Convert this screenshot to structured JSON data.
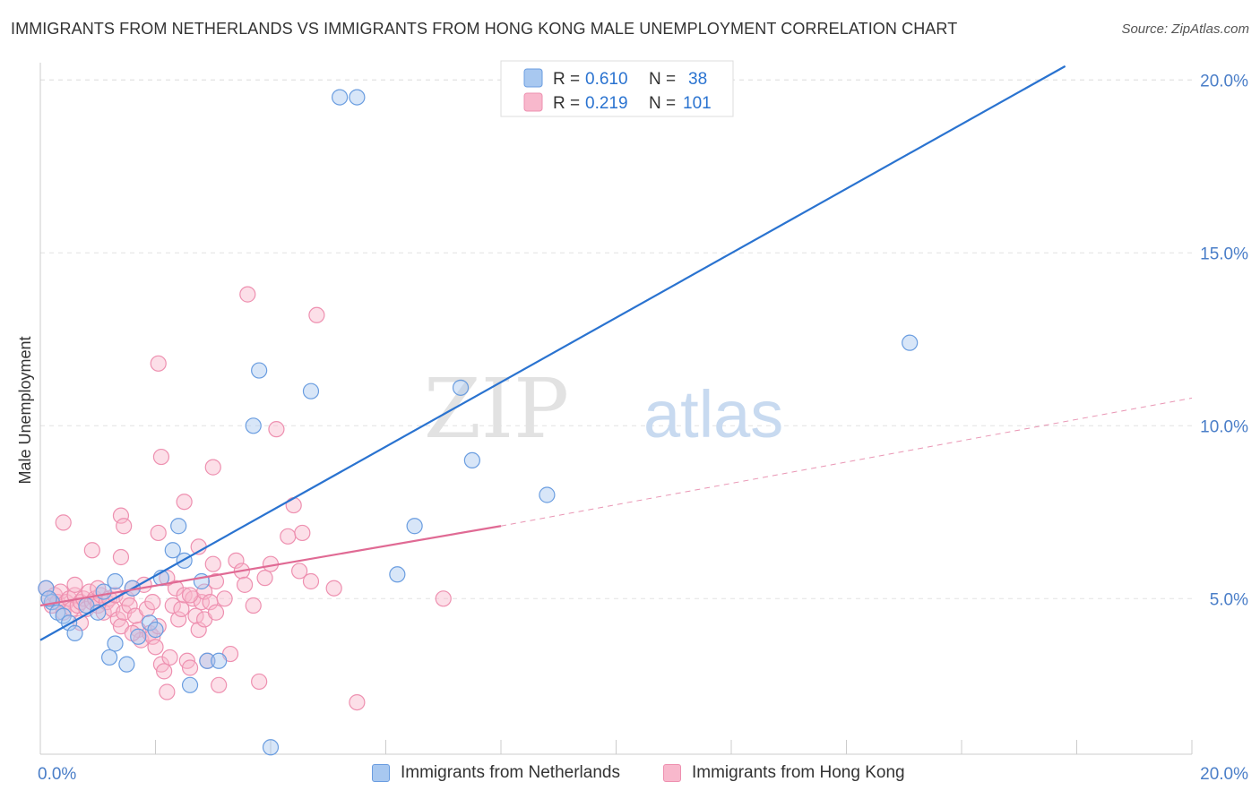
{
  "header": {
    "title": "IMMIGRANTS FROM NETHERLANDS VS IMMIGRANTS FROM HONG KONG MALE UNEMPLOYMENT CORRELATION CHART",
    "source": "Source: ZipAtlas.com"
  },
  "watermark": {
    "part1": "ZIP",
    "part2": "atlas"
  },
  "legend_top": {
    "rows": [
      {
        "r_label": "R = ",
        "r_value": "0.610",
        "n_label": "N = ",
        "n_value": "38"
      },
      {
        "r_label": "R = ",
        "r_value": "0.219",
        "n_label": "N = ",
        "n_value": "101"
      }
    ]
  },
  "legend_bottom": {
    "items": [
      "Immigrants from Netherlands",
      "Immigrants from Hong Kong"
    ]
  },
  "colors": {
    "netherlands_fill": "#a8c8f0",
    "netherlands_stroke": "#6a9de0",
    "netherlands_line": "#2a73d0",
    "hongkong_fill": "#f8b8cc",
    "hongkong_stroke": "#ee90b0",
    "hongkong_line": "#e06a94",
    "axis_label": "#4a7ec8",
    "value_text": "#2a73d0"
  },
  "chart_data": {
    "type": "scatter",
    "title": "IMMIGRANTS FROM NETHERLANDS VS IMMIGRANTS FROM HONG KONG MALE UNEMPLOYMENT CORRELATION CHART",
    "xlabel": "",
    "ylabel": "Male Unemployment",
    "xlim": [
      0,
      20
    ],
    "ylim": [
      0.5,
      20.5
    ],
    "x_tick_labels": [
      "0.0%",
      "20.0%"
    ],
    "y_ticks": [
      5,
      10,
      15,
      20
    ],
    "y_tick_labels": [
      "5.0%",
      "10.0%",
      "15.0%",
      "20.0%"
    ],
    "grid": true,
    "series": [
      {
        "name": "Immigrants from Netherlands",
        "r": 0.61,
        "n": 38,
        "trend": {
          "x": [
            0,
            17.8
          ],
          "y": [
            3.8,
            20.4
          ]
        },
        "points": [
          [
            0.1,
            5.3
          ],
          [
            0.2,
            4.9
          ],
          [
            0.3,
            4.6
          ],
          [
            0.4,
            4.5
          ],
          [
            0.5,
            4.3
          ],
          [
            0.6,
            4.0
          ],
          [
            0.8,
            4.8
          ],
          [
            1.0,
            4.6
          ],
          [
            1.1,
            5.2
          ],
          [
            1.2,
            3.3
          ],
          [
            1.3,
            5.5
          ],
          [
            1.3,
            3.7
          ],
          [
            1.5,
            3.1
          ],
          [
            1.6,
            5.3
          ],
          [
            1.7,
            3.9
          ],
          [
            1.9,
            4.3
          ],
          [
            2.0,
            4.1
          ],
          [
            2.1,
            5.6
          ],
          [
            2.3,
            6.4
          ],
          [
            2.4,
            7.1
          ],
          [
            2.5,
            6.1
          ],
          [
            2.6,
            2.5
          ],
          [
            2.8,
            5.5
          ],
          [
            2.9,
            3.2
          ],
          [
            3.1,
            3.2
          ],
          [
            3.7,
            10.0
          ],
          [
            3.8,
            11.6
          ],
          [
            4.0,
            0.7
          ],
          [
            4.7,
            11.0
          ],
          [
            5.2,
            19.5
          ],
          [
            5.5,
            19.5
          ],
          [
            6.2,
            5.7
          ],
          [
            6.5,
            7.1
          ],
          [
            7.3,
            11.1
          ],
          [
            7.5,
            9.0
          ],
          [
            8.8,
            8.0
          ],
          [
            15.1,
            12.4
          ],
          [
            0.15,
            5.0
          ]
        ]
      },
      {
        "name": "Immigrants from Hong Kong",
        "r": 0.219,
        "n": 101,
        "trend": {
          "x": [
            0,
            8.0
          ],
          "y": [
            4.8,
            7.1
          ]
        },
        "trend_dashed": {
          "x": [
            8.0,
            20.0
          ],
          "y": [
            7.1,
            10.8
          ]
        },
        "points": [
          [
            0.1,
            5.3
          ],
          [
            0.15,
            5.0
          ],
          [
            0.2,
            4.8
          ],
          [
            0.25,
            5.1
          ],
          [
            0.3,
            4.9
          ],
          [
            0.35,
            5.2
          ],
          [
            0.4,
            4.6
          ],
          [
            0.45,
            4.9
          ],
          [
            0.5,
            5.0
          ],
          [
            0.55,
            4.7
          ],
          [
            0.6,
            5.1
          ],
          [
            0.65,
            4.8
          ],
          [
            0.7,
            4.9
          ],
          [
            0.75,
            5.0
          ],
          [
            0.8,
            4.7
          ],
          [
            0.85,
            5.2
          ],
          [
            0.9,
            4.9
          ],
          [
            0.95,
            5.0
          ],
          [
            1.0,
            4.8
          ],
          [
            1.05,
            5.1
          ],
          [
            1.1,
            4.6
          ],
          [
            1.15,
            4.9
          ],
          [
            1.2,
            5.0
          ],
          [
            1.25,
            4.7
          ],
          [
            1.3,
            5.1
          ],
          [
            1.35,
            4.4
          ],
          [
            1.4,
            4.2
          ],
          [
            1.45,
            4.6
          ],
          [
            1.5,
            5.0
          ],
          [
            1.55,
            4.8
          ],
          [
            1.6,
            5.3
          ],
          [
            1.65,
            4.5
          ],
          [
            1.7,
            4.1
          ],
          [
            1.75,
            3.8
          ],
          [
            1.8,
            5.4
          ],
          [
            1.85,
            4.7
          ],
          [
            1.9,
            4.0
          ],
          [
            1.95,
            3.9
          ],
          [
            2.0,
            3.6
          ],
          [
            2.05,
            4.2
          ],
          [
            2.1,
            3.1
          ],
          [
            2.15,
            2.9
          ],
          [
            2.2,
            2.3
          ],
          [
            2.25,
            3.3
          ],
          [
            2.3,
            4.8
          ],
          [
            2.35,
            5.3
          ],
          [
            2.4,
            4.4
          ],
          [
            2.45,
            4.7
          ],
          [
            2.5,
            5.1
          ],
          [
            2.55,
            3.2
          ],
          [
            2.6,
            3.0
          ],
          [
            2.65,
            5.0
          ],
          [
            2.7,
            4.5
          ],
          [
            2.75,
            4.1
          ],
          [
            2.8,
            4.9
          ],
          [
            2.85,
            5.2
          ],
          [
            2.9,
            3.2
          ],
          [
            2.95,
            4.9
          ],
          [
            3.0,
            6.0
          ],
          [
            3.05,
            5.5
          ],
          [
            3.1,
            2.5
          ],
          [
            3.2,
            5.0
          ],
          [
            3.3,
            3.4
          ],
          [
            3.4,
            6.1
          ],
          [
            3.5,
            5.8
          ],
          [
            3.6,
            13.8
          ],
          [
            3.8,
            2.6
          ],
          [
            3.9,
            5.6
          ],
          [
            4.0,
            6.0
          ],
          [
            4.1,
            9.9
          ],
          [
            4.3,
            6.8
          ],
          [
            4.4,
            7.7
          ],
          [
            4.5,
            5.8
          ],
          [
            4.55,
            6.9
          ],
          [
            4.7,
            5.5
          ],
          [
            4.8,
            13.2
          ],
          [
            5.1,
            5.3
          ],
          [
            5.5,
            2.0
          ],
          [
            7.0,
            5.0
          ],
          [
            1.4,
            7.4
          ],
          [
            1.45,
            7.1
          ],
          [
            0.4,
            7.2
          ],
          [
            0.9,
            6.4
          ],
          [
            1.4,
            6.2
          ],
          [
            2.05,
            6.9
          ],
          [
            2.05,
            11.8
          ],
          [
            2.1,
            9.1
          ],
          [
            2.5,
            7.8
          ],
          [
            3.0,
            8.8
          ],
          [
            2.75,
            6.5
          ],
          [
            0.6,
            5.4
          ],
          [
            0.7,
            4.3
          ],
          [
            1.0,
            5.3
          ],
          [
            1.6,
            4.0
          ],
          [
            1.95,
            4.9
          ],
          [
            2.2,
            5.6
          ],
          [
            2.6,
            5.1
          ],
          [
            2.85,
            4.4
          ],
          [
            3.05,
            4.6
          ],
          [
            3.55,
            5.4
          ],
          [
            3.7,
            4.8
          ]
        ]
      }
    ]
  }
}
